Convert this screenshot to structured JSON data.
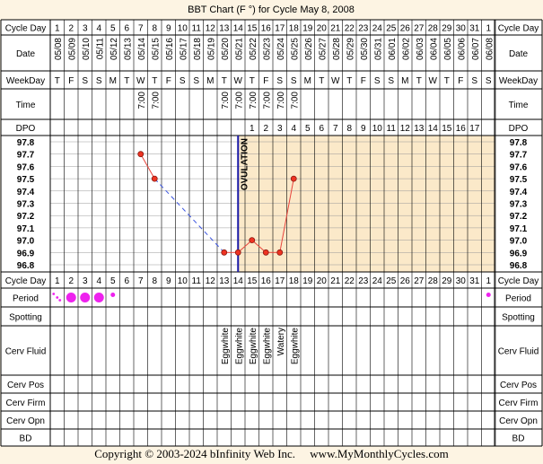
{
  "title": "BBT Chart (F °) for Cycle May 8, 2008",
  "copyright": "Copyright © 2003-2024 bInfinity Web Inc.",
  "website": "www.MyMonthlyCycles.com",
  "row_labels": {
    "cycle_day": "Cycle Day",
    "date": "Date",
    "weekday": "WeekDay",
    "time": "Time",
    "dpo": "DPO",
    "period": "Period",
    "spotting": "Spotting",
    "cerv_fluid": "Cerv Fluid",
    "cerv_pos": "Cerv Pos",
    "cerv_firm": "Cerv Firm",
    "cerv_opn": "Cerv Opn",
    "bd": "BD"
  },
  "ovulation_label": "OVULATION",
  "colors": {
    "pre_ovulation_bg": "#ffffff",
    "post_ovulation_bg": "#fbe9c9",
    "line": "#e8453c",
    "dashed_line": "#3a54e0",
    "ovulation_line": "#1a1aa8",
    "period": "#ee22ee",
    "grid": "#999999"
  },
  "chart_data": {
    "type": "line",
    "ylim": [
      96.8,
      97.8
    ],
    "y_ticks": [
      "97.8",
      "97.7",
      "97.6",
      "97.5",
      "97.4",
      "97.3",
      "97.2",
      "97.1",
      "97.0",
      "96.9",
      "96.8"
    ],
    "cycle_days": [
      "1",
      "2",
      "3",
      "4",
      "5",
      "6",
      "7",
      "8",
      "9",
      "10",
      "11",
      "12",
      "13",
      "14",
      "15",
      "16",
      "17",
      "18",
      "19",
      "20",
      "21",
      "22",
      "23",
      "24",
      "25",
      "26",
      "27",
      "28",
      "29",
      "30",
      "31",
      "1"
    ],
    "dates": [
      "05/08",
      "05/09",
      "05/10",
      "05/11",
      "05/12",
      "05/13",
      "05/14",
      "05/15",
      "05/16",
      "05/17",
      "05/18",
      "05/19",
      "05/20",
      "05/21",
      "05/22",
      "05/23",
      "05/24",
      "05/25",
      "05/26",
      "05/27",
      "05/28",
      "05/29",
      "05/30",
      "05/31",
      "06/01",
      "06/02",
      "06/03",
      "06/04",
      "06/05",
      "06/06",
      "06/07",
      "06/08"
    ],
    "weekdays": [
      "T",
      "F",
      "S",
      "S",
      "M",
      "T",
      "W",
      "T",
      "F",
      "S",
      "S",
      "M",
      "T",
      "W",
      "T",
      "F",
      "S",
      "S",
      "M",
      "T",
      "W",
      "T",
      "F",
      "S",
      "S",
      "M",
      "T",
      "W",
      "T",
      "F",
      "S",
      "S"
    ],
    "times": [
      "",
      "",
      "",
      "",
      "",
      "",
      "7:00",
      "7:00",
      "",
      "",
      "",
      "",
      "7:00",
      "7:00",
      "7:00",
      "7:00",
      "7:00",
      "7:00",
      "",
      "",
      "",
      "",
      "",
      "",
      "",
      "",
      "",
      "",
      "",
      "",
      "",
      ""
    ],
    "dpo": [
      "",
      "",
      "",
      "",
      "",
      "",
      "",
      "",
      "",
      "",
      "",
      "",
      "",
      "",
      "1",
      "2",
      "3",
      "4",
      "5",
      "6",
      "7",
      "8",
      "9",
      "10",
      "11",
      "12",
      "13",
      "14",
      "15",
      "16",
      "17",
      ""
    ],
    "temperatures": [
      null,
      null,
      null,
      null,
      null,
      null,
      97.7,
      97.5,
      null,
      null,
      null,
      null,
      96.9,
      96.9,
      97.0,
      96.9,
      96.9,
      97.5,
      null,
      null,
      null,
      null,
      null,
      null,
      null,
      null,
      null,
      null,
      null,
      null,
      null,
      null
    ],
    "ovulation_day_index": 13,
    "period": [
      "spotting-dots",
      "heavy",
      "heavy",
      "heavy",
      "light",
      "",
      "",
      "",
      "",
      "",
      "",
      "",
      "",
      "",
      "",
      "",
      "",
      "",
      "",
      "",
      "",
      "",
      "",
      "",
      "",
      "",
      "",
      "",
      "",
      "",
      "",
      "light"
    ],
    "cerv_fluid": [
      "",
      "",
      "",
      "",
      "",
      "",
      "",
      "",
      "",
      "",
      "",
      "",
      "Eggwhite",
      "Eggwhite",
      "Eggwhite",
      "Eggwhite",
      "Watery",
      "Eggwhite",
      "",
      "",
      "",
      "",
      "",
      "",
      "",
      "",
      "",
      "",
      "",
      "",
      "",
      ""
    ]
  }
}
